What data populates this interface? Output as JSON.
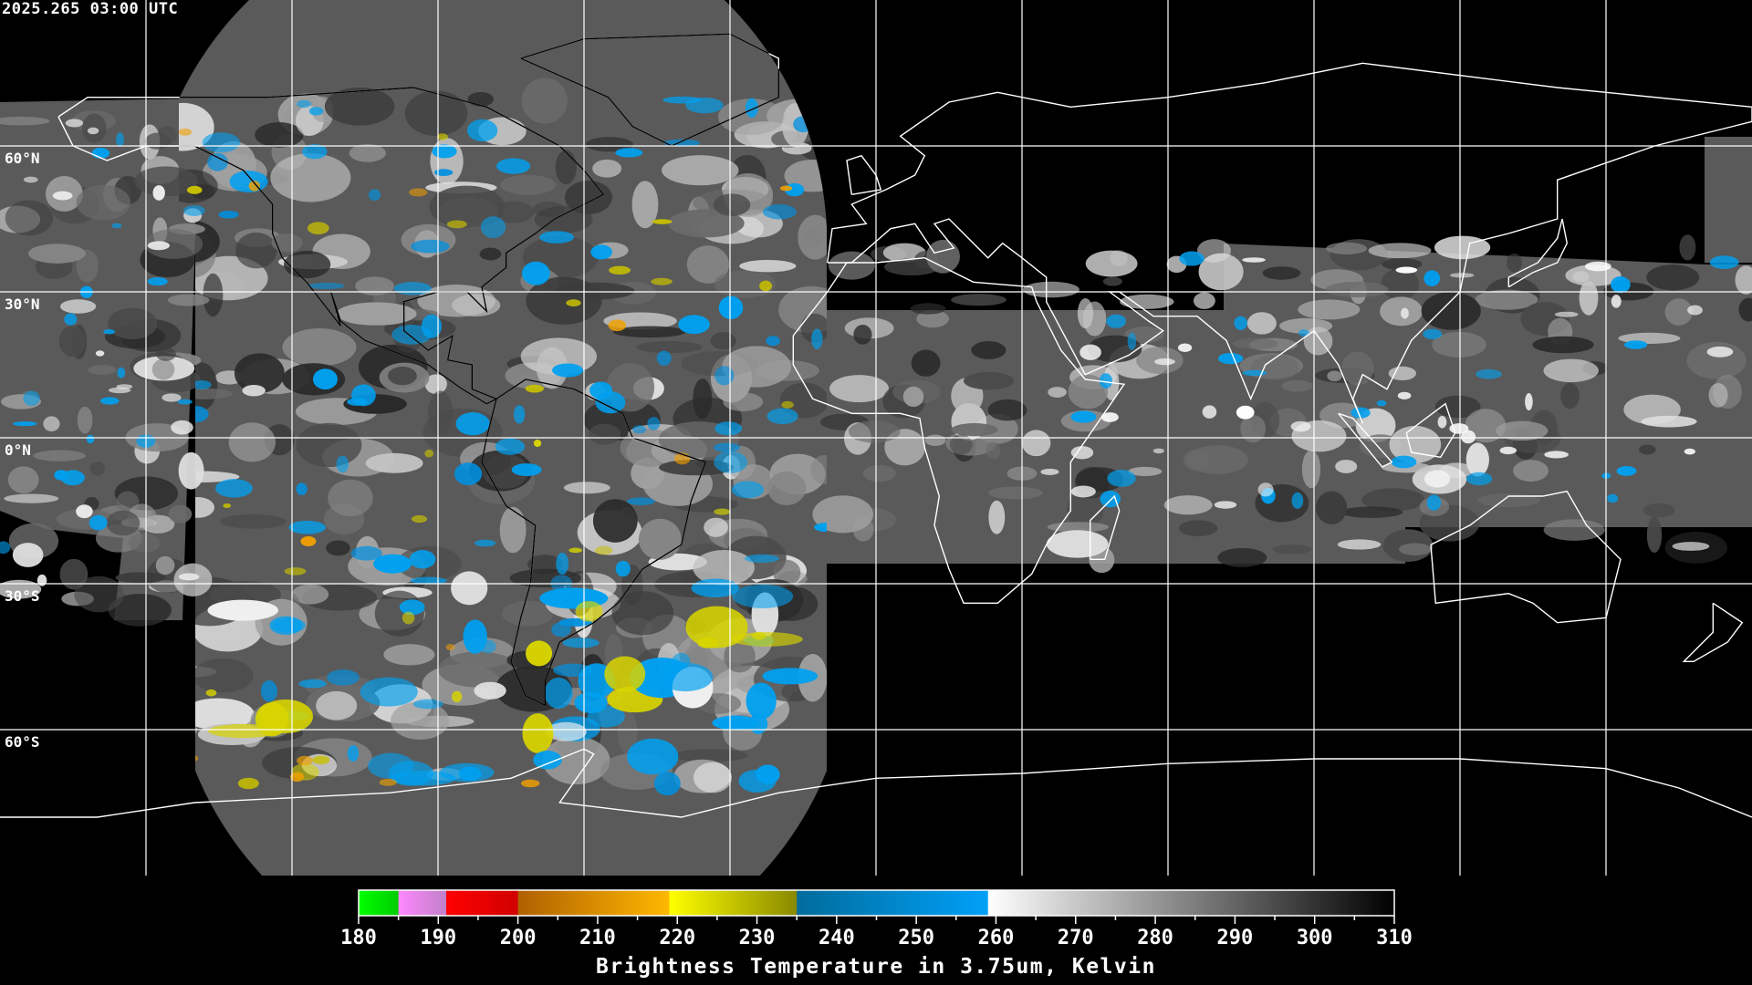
{
  "header": {
    "timestamp": "2025.265 03:00 UTC"
  },
  "map": {
    "projection": "equirectangular",
    "gridline_spacing_degrees": 30,
    "lat_labels": [
      {
        "lat": 60,
        "text": "60°N"
      },
      {
        "lat": 30,
        "text": "30°N"
      },
      {
        "lat": 0,
        "text": "0°N"
      },
      {
        "lat": -30,
        "text": "30°S"
      },
      {
        "lat": -60,
        "text": "60°S"
      }
    ],
    "colors": {
      "grid": "#ffffff",
      "coastline": "#ffffff",
      "background": "#000000"
    }
  },
  "colorbar": {
    "min": 180,
    "max": 310,
    "tick_labels": [
      "180",
      "190",
      "200",
      "210",
      "220",
      "230",
      "240",
      "250",
      "260",
      "270",
      "280",
      "290",
      "300",
      "310"
    ],
    "segments": [
      {
        "from": 180,
        "to": 185,
        "start": "#00ff00",
        "end": "#00cc00"
      },
      {
        "from": 185,
        "to": 191,
        "start": "#ff88ff",
        "end": "#c080c8"
      },
      {
        "from": 191,
        "to": 200,
        "start": "#ff0000",
        "end": "#d00000"
      },
      {
        "from": 200,
        "to": 219,
        "start": "#b06000",
        "end": "#ffb800"
      },
      {
        "from": 219,
        "to": 235,
        "start": "#ffff00",
        "end": "#888800"
      },
      {
        "from": 235,
        "to": 259,
        "start": "#006c9c",
        "end": "#00a0f8"
      },
      {
        "from": 259,
        "to": 310,
        "start": "#ffffff",
        "end": "#000000"
      }
    ],
    "title": "Brightness Temperature in 3.75um, Kelvin"
  }
}
